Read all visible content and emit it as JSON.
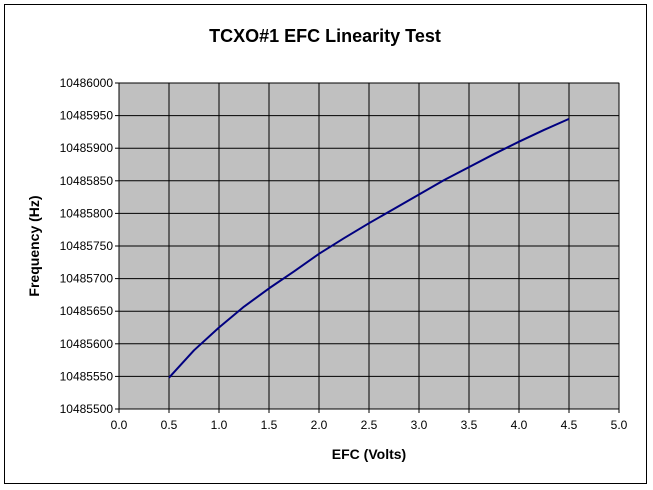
{
  "chart_data": {
    "type": "line",
    "title": "TCXO#1 EFC Linearity Test",
    "xlabel": "EFC (Volts)",
    "ylabel": "Frequency (Hz)",
    "xlim": [
      0.0,
      5.0
    ],
    "ylim": [
      10485500,
      10486000
    ],
    "x_ticks": [
      "0.0",
      "0.5",
      "1.0",
      "1.5",
      "2.0",
      "2.5",
      "3.0",
      "3.5",
      "4.0",
      "4.5",
      "5.0"
    ],
    "y_ticks": [
      "10485500",
      "10485550",
      "10485600",
      "10485650",
      "10485700",
      "10485750",
      "10485800",
      "10485850",
      "10485900",
      "10485950",
      "10486000"
    ],
    "grid": true,
    "plot_background": "#c0c0c0",
    "series": [
      {
        "color": "#000080",
        "x": [
          0.5,
          0.75,
          1.0,
          1.25,
          1.5,
          1.75,
          2.0,
          2.25,
          2.5,
          2.75,
          3.0,
          3.25,
          3.5,
          3.75,
          4.0,
          4.25,
          4.5
        ],
        "y": [
          10485548,
          10485590,
          10485625,
          10485657,
          10485685,
          10485711,
          10485738,
          10485762,
          10485785,
          10485807,
          10485829,
          10485851,
          10485871,
          10485891,
          10485910,
          10485928,
          10485945
        ]
      }
    ]
  }
}
